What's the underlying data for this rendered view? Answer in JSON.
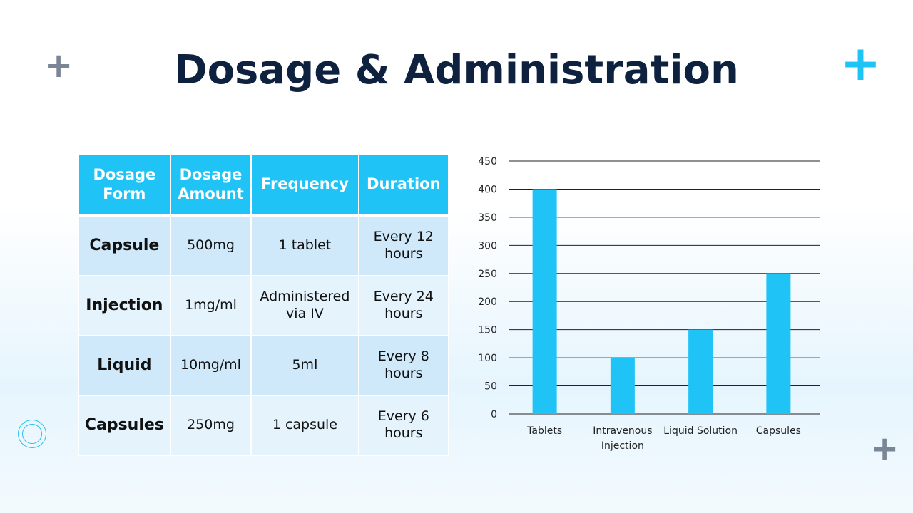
{
  "title": "Dosage & Administration",
  "decor": {
    "plus_colors": [
      "#7a8696",
      "#1fc3f5",
      "#7a8696"
    ],
    "ring_color": "#29c0ea"
  },
  "table": {
    "headers": [
      "Dosage Form",
      "Dosage Amount",
      "Frequency",
      "Duration"
    ],
    "rows": [
      [
        "Capsule",
        "500mg",
        "1 tablet",
        "Every 12 hours"
      ],
      [
        "Injection",
        "1mg/ml",
        "Administered via IV",
        "Every 24 hours"
      ],
      [
        "Liquid",
        "10mg/ml",
        "5ml",
        "Every 8 hours"
      ],
      [
        "Capsules",
        "250mg",
        "1 capsule",
        "Every 6 hours"
      ]
    ],
    "header_color": "#1fc3f5"
  },
  "chart_data": {
    "type": "bar",
    "categories": [
      "Tablets",
      "Intravenous Injection",
      "Liquid Solution",
      "Capsules"
    ],
    "values": [
      400,
      100,
      150,
      250
    ],
    "ylim": [
      0,
      450
    ],
    "yticks": [
      0,
      50,
      100,
      150,
      200,
      250,
      300,
      350,
      400,
      450
    ],
    "grid": true,
    "bar_color": "#1fc3f5",
    "title": "",
    "xlabel": "",
    "ylabel": ""
  }
}
